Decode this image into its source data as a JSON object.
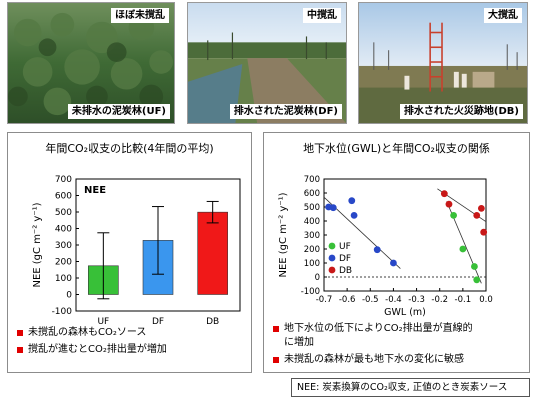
{
  "photos": [
    {
      "tag": "ほぼ未撹乱",
      "caption": "未排水の泥炭林(UF)"
    },
    {
      "tag": "中撹乱",
      "caption": "排水された泥炭林(DF)"
    },
    {
      "tag": "大撹乱",
      "caption": "排水された火災跡地(DB)"
    }
  ],
  "left_panel": {
    "title": "年間CO₂収支の比較(4年間の平均)",
    "bullets": [
      "未撹乱の森林もCO₂ソース",
      "撹乱が進むとCO₂排出量が増加"
    ]
  },
  "right_panel": {
    "title": "地下水位(GWL)と年間CO₂収支の関係",
    "bullets": [
      "地下水位の低下によりCO₂排出量が直線的",
      "に増加",
      "未撹乱の森林が最も地下水の変化に敏感"
    ]
  },
  "footnote": "NEE: 炭素換算のCO₂収支, 正値のとき炭素ソース",
  "chart_data": [
    {
      "type": "bar",
      "title": "年間CO₂収支の比較(4年間の平均)",
      "legend_label": "NEE",
      "ylabel": "NEE (gC m⁻² y⁻¹)",
      "ylim": [
        -100,
        700
      ],
      "yticks": [
        -100,
        0,
        100,
        200,
        300,
        400,
        500,
        600,
        700
      ],
      "categories": [
        "UF",
        "DF",
        "DB"
      ],
      "values": [
        174,
        328,
        499
      ],
      "errors": [
        200,
        205,
        65
      ],
      "colors": [
        "#38c038",
        "#3a96ee",
        "#f01818"
      ]
    },
    {
      "type": "scatter",
      "title": "地下水位(GWL)と年間CO₂収支の関係",
      "xlabel": "GWL (m)",
      "ylabel": "NEE (gC m⁻² y⁻¹)",
      "xlim": [
        -0.7,
        0.0
      ],
      "ylim": [
        -100,
        700
      ],
      "xticks": [
        -0.7,
        -0.6,
        -0.5,
        -0.4,
        -0.3,
        -0.2,
        -0.1,
        0.0
      ],
      "xtick_labels": [
        "-0.7",
        "-0.6",
        "-0.5",
        "-0.4",
        "-0.3",
        "-0.2",
        "-0.1",
        "0.0"
      ],
      "yticks": [
        -100,
        0,
        100,
        200,
        300,
        400,
        500,
        600,
        700
      ],
      "series": [
        {
          "name": "UF",
          "color": "#38c038",
          "points": [
            [
              -0.14,
              440
            ],
            [
              -0.1,
              200
            ],
            [
              -0.05,
              75
            ],
            [
              -0.04,
              -20
            ]
          ],
          "fit": [
            [
              -0.17,
              540
            ],
            [
              -0.02,
              -45
            ]
          ]
        },
        {
          "name": "DF",
          "color": "#2848c8",
          "points": [
            [
              -0.68,
              500
            ],
            [
              -0.66,
              495
            ],
            [
              -0.58,
              545
            ],
            [
              -0.57,
              440
            ],
            [
              -0.47,
              195
            ],
            [
              -0.4,
              100
            ]
          ],
          "fit": [
            [
              -0.7,
              570
            ],
            [
              -0.37,
              60
            ]
          ]
        },
        {
          "name": "DB",
          "color": "#c81818",
          "points": [
            [
              -0.18,
              595
            ],
            [
              -0.16,
              520
            ],
            [
              -0.04,
              440
            ],
            [
              -0.02,
              490
            ],
            [
              -0.01,
              320
            ]
          ],
          "fit": [
            [
              -0.21,
              630
            ],
            [
              0.0,
              395
            ]
          ]
        }
      ]
    }
  ]
}
